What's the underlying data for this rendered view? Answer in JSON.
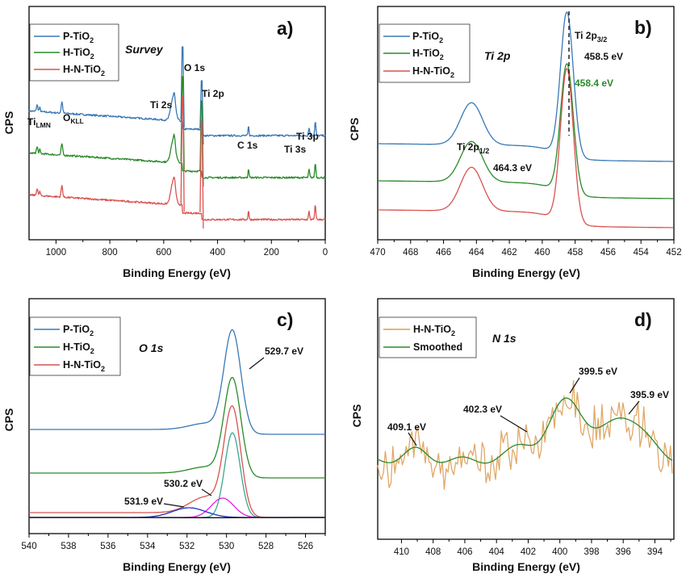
{
  "chart_data": [
    {
      "id": "a",
      "type": "line",
      "panel_label": "a)",
      "title": "Survey",
      "xlabel": "Binding Energy (eV)",
      "ylabel": "CPS",
      "xlim": [
        1100,
        0
      ],
      "xticks": [
        1000,
        800,
        600,
        400,
        200,
        0
      ],
      "legend_position": "top-left",
      "series": [
        {
          "name": "P-TiO",
          "sub": "2",
          "color": "#3a78b5"
        },
        {
          "name": "H-TiO",
          "sub": "2",
          "color": "#2a8a2a"
        },
        {
          "name": "H-N-TiO",
          "sub": "2",
          "color": "#d9534f"
        }
      ],
      "annotations": [
        {
          "text": "Ti",
          "sub": "LMN",
          "x": 1080
        },
        {
          "text": "O",
          "sub": "KLL",
          "x": 975
        },
        {
          "text": "Ti 2s",
          "x": 565
        },
        {
          "text": "O 1s",
          "x": 530
        },
        {
          "text": "Ti 2p",
          "x": 459
        },
        {
          "text": "C 1s",
          "x": 285
        },
        {
          "text": "Ti 3s",
          "x": 60
        },
        {
          "text": "Ti 3p",
          "x": 37
        }
      ]
    },
    {
      "id": "b",
      "type": "line",
      "panel_label": "b)",
      "title": "Ti 2p",
      "xlabel": "Binding Energy (eV)",
      "ylabel": "CPS",
      "xlim": [
        470,
        452
      ],
      "xticks": [
        470,
        468,
        466,
        464,
        462,
        460,
        458,
        456,
        454,
        452
      ],
      "legend_position": "top-left",
      "series": [
        {
          "name": "P-TiO",
          "sub": "2",
          "color": "#3a78b5"
        },
        {
          "name": "H-TiO",
          "sub": "2",
          "color": "#2a8a2a"
        },
        {
          "name": "H-N-TiO",
          "sub": "2",
          "color": "#d9534f"
        }
      ],
      "peaks": [
        {
          "label": "Ti 2p",
          "sub": "3/2",
          "x": 458.5
        },
        {
          "label": "Ti 2p",
          "sub": "1/2",
          "x": 464.3
        }
      ],
      "annotations": [
        {
          "text": "458.5 eV"
        },
        {
          "text": "458.4 eV",
          "color": "#2a8a2a"
        },
        {
          "text": "464.3 eV"
        }
      ]
    },
    {
      "id": "c",
      "type": "line",
      "panel_label": "c)",
      "title": "O 1s",
      "xlabel": "Binding Energy (eV)",
      "ylabel": "CPS",
      "xlim": [
        540,
        525
      ],
      "xticks": [
        540,
        538,
        536,
        534,
        532,
        530,
        528,
        526
      ],
      "legend_position": "top-left",
      "series": [
        {
          "name": "P-TiO",
          "sub": "2",
          "color": "#3a78b5"
        },
        {
          "name": "H-TiO",
          "sub": "2",
          "color": "#2a8a2a"
        },
        {
          "name": "H-N-TiO",
          "sub": "2",
          "color": "#d9534f"
        }
      ],
      "components": [
        {
          "x": 529.7,
          "color": "#3aa890"
        },
        {
          "x": 530.2,
          "color": "#e020e0"
        },
        {
          "x": 531.9,
          "color": "#2030c0"
        }
      ],
      "annotations": [
        {
          "text": "529.7 eV",
          "x": 529.7
        },
        {
          "text": "530.2 eV",
          "x": 530.2
        },
        {
          "text": "531.9 eV",
          "x": 531.9
        }
      ]
    },
    {
      "id": "d",
      "type": "line",
      "panel_label": "d)",
      "title": "N 1s",
      "xlabel": "Binding Energy (eV)",
      "ylabel": "CPS",
      "xlim": [
        411.5,
        392.8
      ],
      "xticks": [
        410,
        408,
        406,
        404,
        402,
        400,
        398,
        396,
        394
      ],
      "legend_position": "top-left",
      "series": [
        {
          "name": "H-N-TiO",
          "sub": "2",
          "color": "#e0a868"
        },
        {
          "name": "Smoothed",
          "sub": "",
          "color": "#2a8a2a"
        }
      ],
      "annotations": [
        {
          "text": "409.1 eV",
          "x": 409.1
        },
        {
          "text": "402.3 eV",
          "x": 402.3
        },
        {
          "text": "399.5 eV",
          "x": 399.5
        },
        {
          "text": "395.9 eV",
          "x": 395.9
        }
      ]
    }
  ]
}
